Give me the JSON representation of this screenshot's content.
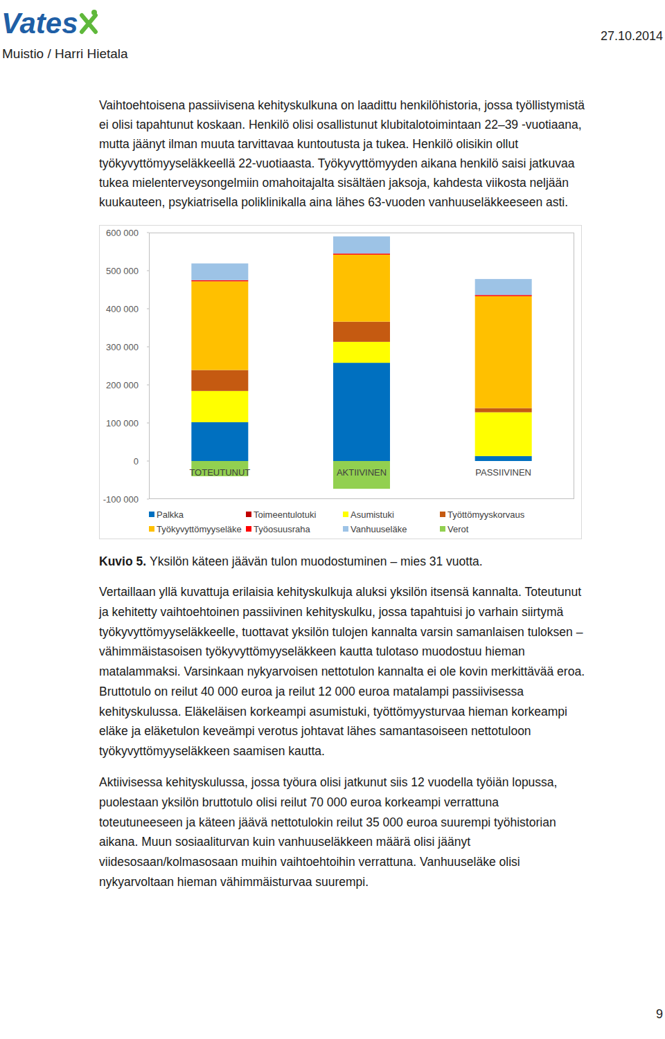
{
  "header": {
    "logo": "Vates",
    "memo": "Muistio / Harri Hietala",
    "date": "27.10.2014"
  },
  "paragraphs_before": [
    {
      "lines": [
        "Vaihtoehtoisena passiivisena kehityskulkuna on laadittu henkilöhistoria, jossa työllistymistä",
        "ei olisi tapahtunut koskaan. Henkilö olisi osallistunut klubitalotoimintaan 22–39 -vuotiaana,",
        "mutta jäänyt ilman muuta tarvittavaa kuntoutusta ja tukea. Henkilö olisikin ollut",
        "työkyvyttömyyseläkkeellä 22-vuotiaasta. Työkyvyttömyyden aikana henkilö saisi jatkuvaa",
        "tukea mielenterveysongelmiin omahoitajalta sisältäen jaksoja, kahdesta viikosta neljään",
        "kuukauteen, psykiatrisella poliklinikalla aina lähes 63-vuoden vanhuuseläkkeeseen asti."
      ]
    }
  ],
  "chart_data": {
    "type": "bar",
    "stacked": true,
    "grid": false,
    "legend": "bottom",
    "categories": [
      "TOTEUTUNUT",
      "AKTIIVINEN",
      "PASSIIVINEN"
    ],
    "ylim": [
      -100000,
      600000
    ],
    "yticks": [
      {
        "value": -100000,
        "label": "-100 000"
      },
      0,
      {
        "value": 100000,
        "label": "100 000"
      },
      {
        "value": 200000,
        "label": "200 000"
      },
      {
        "value": 300000,
        "label": "300 000"
      },
      {
        "value": 400000,
        "label": "400 000"
      },
      {
        "value": 500000,
        "label": "500 000"
      },
      {
        "value": 600000,
        "label": "600 000"
      }
    ],
    "series": [
      {
        "name": "Palkka",
        "color": "#0070c0",
        "values": [
          102000,
          258000,
          13000
        ]
      },
      {
        "name": "Toimeentulotuki",
        "color": "#c00000",
        "values": [
          0,
          0,
          0
        ]
      },
      {
        "name": "Asumistuki",
        "color": "#ffff00",
        "values": [
          82000,
          55000,
          115000
        ]
      },
      {
        "name": "Työttömyyskorvaus",
        "color": "#c55a11",
        "values": [
          55000,
          53000,
          11000
        ]
      },
      {
        "name": "Työkyvyttömyyseläke",
        "color": "#ffc000",
        "values": [
          233000,
          176000,
          294000
        ]
      },
      {
        "name": "Työosuusraha",
        "color": "#ff0000",
        "values": [
          3000,
          3000,
          3000
        ]
      },
      {
        "name": "Vanhuuseläke",
        "color": "#9dc3e6",
        "values": [
          44000,
          45000,
          42000
        ]
      },
      {
        "name": "Verot",
        "color": "#92d050",
        "values": [
          -40000,
          -73000,
          0
        ]
      }
    ]
  },
  "caption": {
    "label": "Kuvio 5.",
    "text": "Yksilön käteen jäävän tulon muodostuminen – mies 31 vuotta."
  },
  "paragraphs_after": [
    {
      "lines": [
        "Vertaillaan yllä kuvattuja erilaisia kehityskulkuja aluksi yksilön itsensä kannalta. Toteutunut",
        "ja kehitetty vaihtoehtoinen passiivinen kehityskulku, jossa tapahtuisi jo varhain siirtymä",
        "työkyvyttömyyseläkkeelle, tuottavat yksilön tulojen kannalta varsin samanlaisen tuloksen –",
        "vähimmäistasoisen työkyvyttömyyseläkkeen kautta tulotaso muodostuu hieman",
        "matalammaksi. Varsinkaan nykyarvoisen nettotulon kannalta ei ole kovin merkittävää eroa.",
        "Bruttotulo on reilut 40 000 euroa ja reilut 12 000 euroa matalampi passiivisessa",
        "kehityskulussa. Eläkeläisen korkeampi asumistuki, työttömyysturvaa hieman korkeampi",
        "eläke ja eläketulon keveämpi verotus johtavat lähes samantasoiseen nettotuloon",
        "työkyvyttömyyseläkkeen saamisen kautta."
      ]
    },
    {
      "lines": [
        "Aktiivisessa kehityskulussa, jossa työura olisi jatkunut siis 12 vuodella työiän lopussa,",
        "puolestaan yksilön bruttotulo olisi reilut 70 000 euroa korkeampi verrattuna",
        "toteutuneeseen ja käteen jäävä nettotulokin reilut 35 000 euroa suurempi työhistorian",
        "aikana. Muun sosiaaliturvan kuin vanhuuseläkkeen määrä olisi jäänyt",
        "viidesosaan/kolmasosaan muihin vaihtoehtoihin verrattuna. Vanhuuseläke olisi",
        "nykyarvoltaan hieman vähimmäisturvaa suurempi."
      ]
    }
  ],
  "page_number": "9"
}
